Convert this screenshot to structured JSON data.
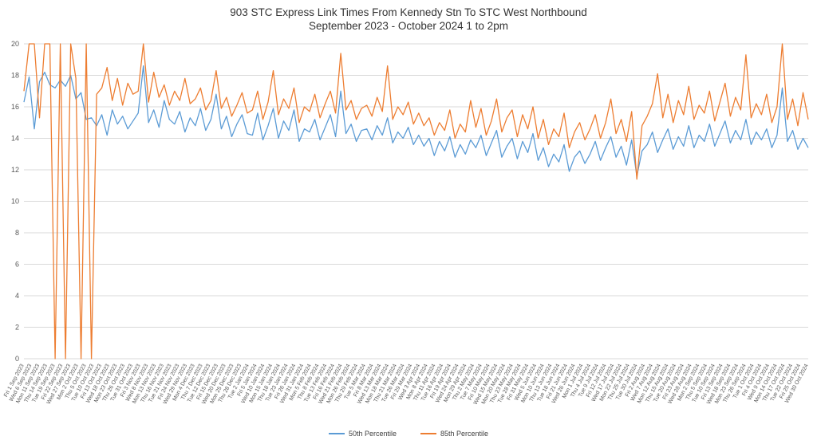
{
  "chart_data": {
    "type": "line",
    "title": "903 STC Express Link Times From Kennedy Stn To STC West Northbound",
    "subtitle": "September 2023 - October 2024 1 to 2pm",
    "xlabel": "",
    "ylabel": "",
    "ylim": [
      0,
      20
    ],
    "y_ticks": [
      0,
      2,
      4,
      6,
      8,
      10,
      12,
      14,
      16,
      18,
      20
    ],
    "grid": true,
    "grid_color": "#D9D9D9",
    "tick_color": "#595959",
    "legend_position": "bottom",
    "x_tick_labels": [
      "Fri 1 Sep 2023",
      "Wed 6 Sep 2023",
      "Mon 11 Sep 2023",
      "Thu 14 Sep 2023",
      "Tue 19 Sep 2023",
      "Fri 22 Sep 2023",
      "Wed 27 Sep 2023",
      "Mon 2 Oct 2023",
      "Thu 5 Oct 2023",
      "Tue 10 Oct 2023",
      "Fri 13 Oct 2023",
      "Wed 18 Oct 2023",
      "Mon 23 Oct 2023",
      "Thu 26 Oct 2023",
      "Tue 31 Oct 2023",
      "Fri 3 Nov 2023",
      "Wed 8 Nov 2023",
      "Mon 13 Nov 2023",
      "Thu 16 Nov 2023",
      "Tue 21 Nov 2023",
      "Fri 24 Nov 2023",
      "Wed 29 Nov 2023",
      "Mon 4 Dec 2023",
      "Thu 7 Dec 2023",
      "Tue 12 Dec 2023",
      "Fri 15 Dec 2023",
      "Wed 20 Dec 2023",
      "Mon 25 Dec 2023",
      "Thu 28 Dec 2023",
      "Tue 2 Jan 2024",
      "Fri 5 Jan 2024",
      "Wed 10 Jan 2024",
      "Mon 15 Jan 2024",
      "Thu 18 Jan 2024",
      "Tue 23 Jan 2024",
      "Fri 26 Jan 2024",
      "Wed 31 Jan 2024",
      "Mon 5 Feb 2024",
      "Thu 8 Feb 2024",
      "Tue 13 Feb 2024",
      "Fri 16 Feb 2024",
      "Wed 21 Feb 2024",
      "Mon 26 Feb 2024",
      "Thu 29 Feb 2024",
      "Tue 5 Mar 2024",
      "Fri 8 Mar 2024",
      "Wed 13 Mar 2024",
      "Mon 18 Mar 2024",
      "Thu 21 Mar 2024",
      "Tue 26 Mar 2024",
      "Fri 29 Mar 2024",
      "Wed 3 Apr 2024",
      "Mon 8 Apr 2024",
      "Thu 11 Apr 2024",
      "Tue 16 Apr 2024",
      "Fri 19 Apr 2024",
      "Wed 24 Apr 2024",
      "Mon 29 Apr 2024",
      "Thu 2 May 2024",
      "Tue 7 May 2024",
      "Fri 10 May 2024",
      "Wed 15 May 2024",
      "Mon 20 May 2024",
      "Thu 23 May 2024",
      "Tue 28 May 2024",
      "Fri 31 May 2024",
      "Wed 5 Jun 2024",
      "Mon 10 Jun 2024",
      "Thu 13 Jun 2024",
      "Tue 18 Jun 2024",
      "Fri 21 Jun 2024",
      "Wed 26 Jun 2024",
      "Mon 1 Jul 2024",
      "Thu 4 Jul 2024",
      "Tue 9 Jul 2024",
      "Fri 12 Jul 2024",
      "Wed 17 Jul 2024",
      "Mon 22 Jul 2024",
      "Thu 25 Jul 2024",
      "Tue 30 Jul 2024",
      "Fri 2 Aug 2024",
      "Wed 7 Aug 2024",
      "Mon 12 Aug 2024",
      "Thu 15 Aug 2024",
      "Tue 20 Aug 2024",
      "Fri 23 Aug 2024",
      "Wed 28 Aug 2024",
      "Mon 2 Sep 2024",
      "Thu 5 Sep 2024",
      "Tue 10 Sep 2024",
      "Fri 13 Sep 2024",
      "Wed 18 Sep 2024",
      "Mon 23 Sep 2024",
      "Thu 26 Sep 2024",
      "Tue 1 Oct 2024",
      "Fri 4 Oct 2024",
      "Wed 9 Oct 2024",
      "Mon 14 Oct 2024",
      "Thu 17 Oct 2024",
      "Tue 22 Oct 2024",
      "Fri 25 Oct 2024",
      "Wed 30 Oct 2024"
    ],
    "series": [
      {
        "name": "50th Percentile",
        "color": "#5B9BD5",
        "values": [
          16.3,
          17.9,
          14.6,
          17.6,
          18.2,
          17.4,
          17.2,
          17.7,
          17.3,
          18.0,
          16.5,
          16.9,
          15.2,
          15.3,
          14.8,
          15.5,
          14.2,
          15.8,
          14.9,
          15.4,
          14.6,
          15.1,
          15.6,
          18.6,
          15.0,
          15.8,
          14.7,
          16.4,
          15.2,
          14.9,
          15.7,
          14.4,
          15.3,
          14.8,
          15.9,
          14.5,
          15.2,
          16.8,
          14.6,
          15.4,
          14.1,
          14.9,
          15.5,
          14.3,
          14.2,
          15.6,
          13.9,
          14.8,
          15.9,
          14.0,
          15.1,
          14.5,
          15.8,
          13.8,
          14.6,
          14.4,
          15.2,
          13.9,
          14.7,
          15.5,
          14.1,
          17.0,
          14.3,
          14.9,
          13.8,
          14.5,
          14.6,
          13.9,
          14.8,
          14.2,
          15.3,
          13.7,
          14.4,
          14.0,
          14.7,
          13.6,
          14.2,
          13.5,
          14.0,
          12.9,
          13.8,
          13.2,
          14.1,
          12.8,
          13.6,
          13.0,
          13.9,
          13.4,
          14.2,
          12.9,
          13.7,
          14.5,
          12.8,
          13.5,
          14.0,
          12.7,
          13.8,
          13.1,
          14.3,
          12.6,
          13.4,
          12.2,
          13.0,
          12.5,
          13.6,
          11.9,
          12.8,
          13.2,
          12.4,
          13.0,
          13.8,
          12.6,
          13.4,
          14.1,
          12.8,
          13.5,
          12.3,
          13.9,
          11.6,
          13.2,
          13.6,
          14.4,
          13.1,
          13.9,
          14.6,
          13.3,
          14.1,
          13.5,
          14.8,
          13.4,
          14.2,
          13.8,
          14.9,
          13.5,
          14.3,
          15.1,
          13.7,
          14.5,
          13.9,
          15.2,
          13.6,
          14.4,
          13.9,
          14.6,
          13.4,
          14.2,
          17.2,
          13.8,
          14.5,
          13.3,
          14.0,
          13.4
        ]
      },
      {
        "name": "85th Percentile",
        "color": "#ED7D31",
        "values": [
          17.0,
          20.0,
          20.0,
          15.3,
          20.0,
          20.0,
          0,
          20.0,
          0,
          20.0,
          17.8,
          0,
          20.0,
          0,
          16.8,
          17.2,
          18.5,
          16.4,
          17.8,
          16.1,
          17.5,
          16.8,
          17.0,
          20.0,
          16.3,
          18.2,
          16.6,
          17.4,
          16.1,
          17.0,
          16.4,
          17.8,
          16.2,
          16.5,
          17.2,
          15.8,
          16.4,
          18.3,
          15.9,
          16.6,
          15.4,
          16.1,
          16.9,
          15.6,
          15.8,
          17.0,
          15.2,
          16.3,
          18.3,
          15.5,
          16.5,
          15.9,
          17.2,
          15.0,
          16.0,
          15.7,
          16.8,
          15.3,
          16.2,
          17.0,
          15.6,
          19.4,
          15.8,
          16.4,
          15.2,
          15.9,
          16.1,
          15.4,
          16.6,
          15.7,
          18.6,
          15.2,
          16.0,
          15.5,
          16.3,
          14.9,
          15.6,
          14.8,
          15.3,
          14.2,
          15.0,
          14.5,
          15.8,
          14.0,
          14.9,
          14.4,
          16.4,
          14.7,
          15.9,
          14.2,
          15.1,
          16.5,
          14.4,
          15.3,
          15.8,
          14.1,
          15.5,
          14.6,
          16.0,
          14.0,
          15.2,
          13.6,
          14.6,
          14.1,
          15.6,
          13.4,
          14.4,
          15.0,
          13.9,
          14.6,
          15.5,
          14.0,
          15.0,
          16.5,
          14.3,
          15.2,
          13.8,
          15.7,
          11.4,
          14.8,
          15.4,
          16.2,
          18.1,
          15.3,
          16.8,
          15.0,
          16.4,
          15.5,
          17.3,
          15.2,
          16.1,
          15.6,
          17.0,
          15.1,
          16.3,
          17.5,
          15.4,
          16.6,
          15.8,
          19.3,
          15.3,
          16.2,
          15.5,
          16.8,
          15.0,
          16.0,
          20.0,
          15.2,
          16.5,
          14.8,
          16.9,
          15.2
        ]
      }
    ]
  }
}
